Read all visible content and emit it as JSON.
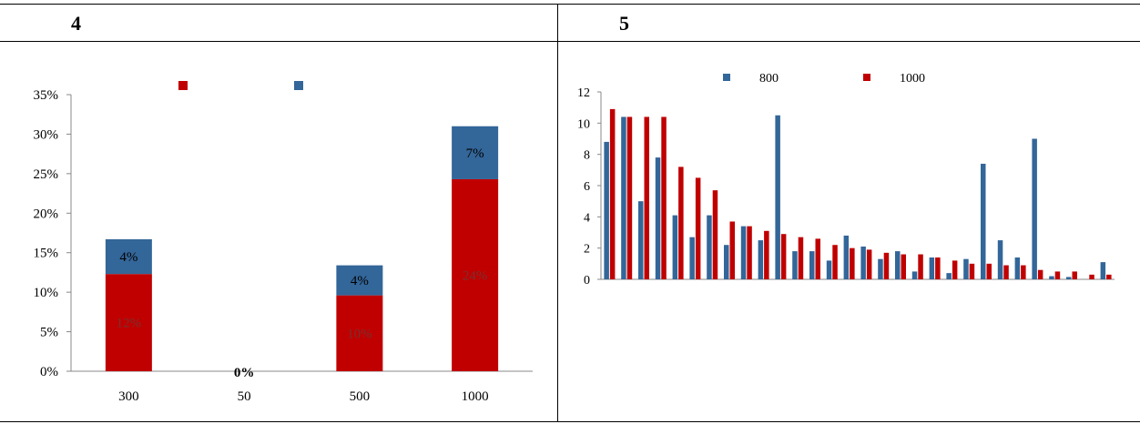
{
  "panels": [
    {
      "label": "4"
    },
    {
      "label": "5"
    }
  ],
  "chart_data": [
    {
      "type": "bar",
      "stacked": true,
      "categories": [
        "300",
        "50",
        "500",
        "1000"
      ],
      "series": [
        {
          "color": "#c00000",
          "values": [
            12.3,
            0,
            9.6,
            24.3
          ],
          "labels": [
            "12%",
            "0%",
            "10%",
            "24%"
          ]
        },
        {
          "color": "#336699",
          "values": [
            4.4,
            0,
            3.8,
            6.7
          ],
          "labels": [
            "4%",
            "",
            "4%",
            "7%"
          ]
        }
      ],
      "ylim": [
        0,
        35
      ],
      "yticks": [
        "0%",
        "5%",
        "10%",
        "15%",
        "20%",
        "25%",
        "30%",
        "35%"
      ],
      "grid": false,
      "legend": "top"
    },
    {
      "type": "bar",
      "categories_count": 30,
      "series": [
        {
          "name": "800",
          "color": "#336699",
          "values": [
            8.8,
            10.4,
            5.0,
            7.8,
            4.1,
            2.7,
            4.1,
            2.2,
            3.4,
            2.5,
            10.5,
            1.8,
            1.8,
            1.2,
            2.8,
            2.1,
            1.3,
            1.8,
            0.5,
            1.4,
            0.4,
            1.3,
            7.4,
            2.5,
            1.4,
            9.0,
            0.2,
            0.15,
            0.0,
            1.1
          ]
        },
        {
          "name": "1000",
          "color": "#c00000",
          "values": [
            10.9,
            10.4,
            10.4,
            10.4,
            7.2,
            6.5,
            5.7,
            3.7,
            3.4,
            3.1,
            2.9,
            2.7,
            2.6,
            2.2,
            2.0,
            1.9,
            1.7,
            1.6,
            1.6,
            1.4,
            1.2,
            1.0,
            1.0,
            0.9,
            0.9,
            0.6,
            0.5,
            0.5,
            0.3,
            0.3
          ]
        }
      ],
      "ylim": [
        0,
        12
      ],
      "yticks": [
        "0",
        "2",
        "4",
        "6",
        "8",
        "10",
        "12"
      ],
      "grid": false,
      "legend": "top"
    }
  ]
}
